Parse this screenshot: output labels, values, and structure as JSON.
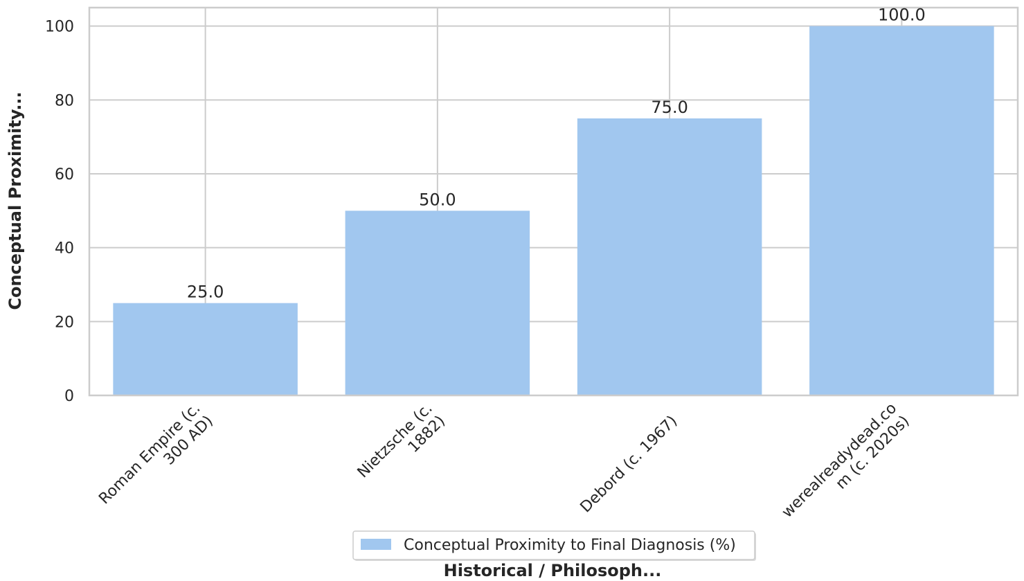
{
  "chart_data": {
    "type": "bar",
    "categories": [
      [
        "Roman Empire (c.",
        "300 AD)"
      ],
      [
        "Nietzsche (c.",
        "1882)"
      ],
      [
        "Debord (c. 1967)"
      ],
      [
        "werealreadydead.co",
        "m (c. 2020s)"
      ]
    ],
    "series": [
      {
        "name": "Conceptual Proximity to Final Diagnosis (%)",
        "values": [
          25.0,
          50.0,
          75.0,
          100.0
        ],
        "color": "#a1c7ef"
      }
    ],
    "data_labels": [
      "25.0",
      "50.0",
      "75.0",
      "100.0"
    ],
    "xlabel": "Historical / Philosoph...",
    "ylabel": "Conceptual Proximity...",
    "ylim": [
      0,
      105
    ],
    "yticks": [
      0,
      20,
      40,
      60,
      80,
      100
    ],
    "grid": true,
    "legend_position": "bottom-center"
  }
}
